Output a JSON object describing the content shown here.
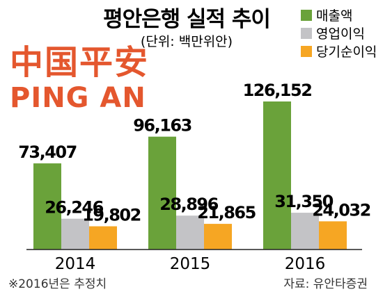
{
  "chart_data": {
    "type": "bar",
    "title": "평안은행 실적 추이",
    "subtitle": "(단위: 백만위안)",
    "categories": [
      "2014",
      "2015",
      "2016"
    ],
    "series": [
      {
        "name": "매출액",
        "color": "#6aa23a",
        "values": [
          73407,
          96163,
          126152
        ],
        "labels": [
          "73,407",
          "96,163",
          "126,152"
        ]
      },
      {
        "name": "영업이익",
        "color": "#c3c3c6",
        "values": [
          26246,
          28896,
          31350
        ],
        "labels": [
          "26,246",
          "28,896",
          "31,350"
        ]
      },
      {
        "name": "당기순이익",
        "color": "#f6a623",
        "values": [
          19802,
          21865,
          24032
        ],
        "labels": [
          "19,802",
          "21,865",
          "24,032"
        ]
      }
    ],
    "legend_position": "top-right",
    "grid": false,
    "ylim": [
      0,
      150000
    ]
  },
  "logo": {
    "brand_cn": "中国平安",
    "brand_en": "PING AN",
    "color": "#e4572e"
  },
  "footer": {
    "note": "※2016년은 추정치",
    "source": "자료: 유안타증권"
  }
}
